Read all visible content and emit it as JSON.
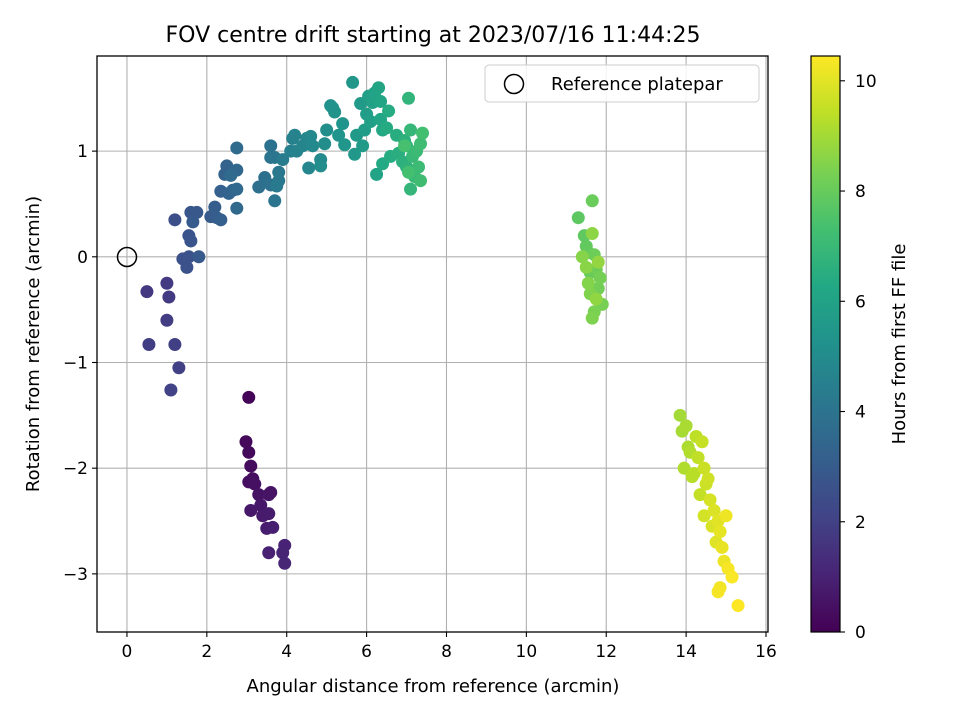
{
  "chart_data": {
    "type": "scatter",
    "title": "FOV centre drift starting at 2023/07/16 11:44:25",
    "xlabel": "Angular distance from reference (arcmin)",
    "ylabel": "Rotation from reference (arcmin)",
    "xlim": [
      -0.75,
      16.05
    ],
    "ylim": [
      -3.55,
      1.9
    ],
    "xticks": [
      0,
      2,
      4,
      6,
      8,
      10,
      12,
      14,
      16
    ],
    "yticks": [
      -3,
      -2,
      -1,
      0,
      1
    ],
    "xtick_labels": [
      "0",
      "2",
      "4",
      "6",
      "8",
      "10",
      "12",
      "14",
      "16"
    ],
    "ytick_labels": [
      "−3",
      "−2",
      "−1",
      "0",
      "1"
    ],
    "grid": true,
    "legend": {
      "position": "top-right",
      "entries": [
        "Reference platepar"
      ]
    },
    "reference_point": {
      "x": 0,
      "y": 0
    },
    "colorbar": {
      "label": "Hours from first FF file",
      "colormap": "viridis",
      "range": [
        0,
        10.45
      ],
      "ticks": [
        0,
        2,
        4,
        6,
        8,
        10
      ],
      "tick_labels": [
        "0",
        "2",
        "4",
        "6",
        "8",
        "10"
      ]
    },
    "points": [
      [
        3.05,
        -1.33,
        0.1
      ],
      [
        2.98,
        -1.75,
        0.2
      ],
      [
        3.05,
        -1.85,
        0.25
      ],
      [
        3.1,
        -1.98,
        0.3
      ],
      [
        3.15,
        -2.1,
        0.35
      ],
      [
        3.05,
        -2.13,
        0.4
      ],
      [
        3.2,
        -2.15,
        0.45
      ],
      [
        3.3,
        -2.25,
        0.5
      ],
      [
        3.55,
        -2.25,
        0.6
      ],
      [
        3.6,
        -2.23,
        0.55
      ],
      [
        3.35,
        -2.35,
        0.65
      ],
      [
        3.1,
        -2.4,
        0.7
      ],
      [
        3.4,
        -2.45,
        0.75
      ],
      [
        3.55,
        -2.43,
        0.8
      ],
      [
        3.5,
        -2.57,
        0.85
      ],
      [
        3.65,
        -2.56,
        0.9
      ],
      [
        3.55,
        -2.8,
        0.95
      ],
      [
        3.95,
        -2.73,
        1.0
      ],
      [
        3.9,
        -2.8,
        1.05
      ],
      [
        3.95,
        -2.9,
        1.1
      ],
      [
        0.5,
        -0.33,
        1.7
      ],
      [
        1.0,
        -0.25,
        1.75
      ],
      [
        1.05,
        -0.38,
        1.8
      ],
      [
        1.0,
        -0.6,
        1.85
      ],
      [
        0.55,
        -0.83,
        1.9
      ],
      [
        1.2,
        -0.83,
        1.95
      ],
      [
        1.3,
        -1.05,
        2.0
      ],
      [
        1.1,
        -1.26,
        2.05
      ],
      [
        1.2,
        0.35,
        2.5
      ],
      [
        1.4,
        -0.02,
        2.55
      ],
      [
        1.5,
        -0.1,
        2.6
      ],
      [
        1.55,
        0.0,
        2.65
      ],
      [
        1.55,
        0.2,
        2.7
      ],
      [
        1.6,
        0.15,
        2.75
      ],
      [
        1.6,
        0.42,
        2.8
      ],
      [
        1.75,
        0.42,
        2.85
      ],
      [
        1.8,
        0.0,
        2.9
      ],
      [
        1.65,
        0.33,
        2.95
      ],
      [
        2.1,
        0.38,
        3.0
      ],
      [
        2.25,
        0.37,
        3.05
      ],
      [
        2.2,
        0.47,
        3.1
      ],
      [
        2.35,
        0.35,
        3.15
      ],
      [
        2.35,
        0.62,
        3.2
      ],
      [
        2.45,
        0.78,
        3.25
      ],
      [
        2.5,
        0.86,
        3.3
      ],
      [
        2.55,
        0.6,
        3.35
      ],
      [
        2.65,
        0.63,
        3.4
      ],
      [
        2.75,
        0.82,
        3.45
      ],
      [
        2.75,
        0.64,
        3.5
      ],
      [
        2.75,
        0.46,
        3.55
      ],
      [
        2.75,
        1.03,
        3.6
      ],
      [
        2.6,
        0.77,
        3.65
      ],
      [
        3.3,
        0.66,
        3.8
      ],
      [
        3.45,
        0.75,
        3.85
      ],
      [
        3.6,
        0.68,
        3.9
      ],
      [
        3.6,
        1.05,
        3.95
      ],
      [
        3.6,
        0.94,
        4.0
      ],
      [
        3.7,
        0.53,
        4.05
      ],
      [
        3.7,
        0.94,
        4.1
      ],
      [
        3.8,
        0.8,
        4.15
      ],
      [
        3.8,
        0.72,
        4.2
      ],
      [
        3.75,
        0.67,
        4.25
      ],
      [
        3.9,
        0.92,
        4.3
      ],
      [
        4.1,
        1.0,
        4.5
      ],
      [
        4.15,
        1.12,
        4.55
      ],
      [
        4.2,
        1.15,
        4.6
      ],
      [
        4.25,
        1.0,
        4.65
      ],
      [
        4.4,
        1.05,
        4.7
      ],
      [
        4.5,
        1.12,
        4.75
      ],
      [
        4.55,
        0.84,
        4.8
      ],
      [
        4.6,
        1.14,
        4.85
      ],
      [
        4.65,
        1.05,
        4.9
      ],
      [
        4.85,
        0.92,
        4.95
      ],
      [
        4.85,
        0.86,
        5.0
      ],
      [
        4.95,
        1.07,
        5.05
      ],
      [
        5.0,
        1.2,
        5.1
      ],
      [
        5.1,
        1.43,
        5.2
      ],
      [
        5.15,
        1.41,
        5.25
      ],
      [
        5.2,
        1.37,
        5.3
      ],
      [
        5.3,
        1.15,
        5.35
      ],
      [
        5.4,
        1.26,
        5.4
      ],
      [
        5.45,
        1.06,
        5.45
      ],
      [
        5.65,
        1.65,
        5.5
      ],
      [
        5.7,
        0.97,
        5.55
      ],
      [
        5.75,
        1.15,
        5.6
      ],
      [
        5.85,
        1.45,
        5.65
      ],
      [
        5.9,
        1.05,
        5.7
      ],
      [
        5.95,
        1.2,
        5.75
      ],
      [
        6.0,
        1.35,
        5.8
      ],
      [
        6.05,
        1.52,
        5.85
      ],
      [
        6.1,
        1.28,
        5.9
      ],
      [
        6.15,
        1.46,
        5.95
      ],
      [
        6.2,
        1.55,
        6.0
      ],
      [
        6.25,
        0.78,
        6.05
      ],
      [
        6.3,
        1.6,
        6.1
      ],
      [
        6.35,
        1.47,
        6.15
      ],
      [
        6.35,
        1.3,
        6.2
      ],
      [
        6.4,
        1.2,
        6.25
      ],
      [
        6.4,
        0.88,
        6.3
      ],
      [
        6.5,
        1.22,
        6.35
      ],
      [
        6.55,
        1.38,
        6.4
      ],
      [
        6.6,
        0.95,
        6.45
      ],
      [
        6.75,
        1.15,
        6.5
      ],
      [
        6.8,
        0.98,
        6.55
      ],
      [
        6.9,
        0.9,
        6.6
      ],
      [
        6.95,
        1.1,
        6.65
      ],
      [
        7.0,
        0.85,
        6.7
      ],
      [
        7.0,
        1.05,
        6.75
      ],
      [
        7.05,
        1.5,
        6.8
      ],
      [
        7.1,
        0.64,
        6.85
      ],
      [
        7.1,
        1.2,
        6.9
      ],
      [
        7.15,
        0.95,
        6.95
      ],
      [
        7.2,
        0.76,
        7.0
      ],
      [
        7.25,
        1.0,
        7.05
      ],
      [
        7.3,
        0.85,
        7.1
      ],
      [
        7.35,
        1.07,
        7.15
      ],
      [
        7.35,
        0.72,
        7.2
      ],
      [
        7.4,
        1.17,
        7.25
      ],
      [
        7.05,
        0.8,
        7.3
      ],
      [
        6.95,
        1.05,
        7.35
      ],
      [
        11.3,
        0.37,
        7.8
      ],
      [
        11.45,
        0.2,
        7.85
      ],
      [
        11.5,
        0.1,
        7.9
      ],
      [
        11.55,
        0.04,
        7.95
      ],
      [
        11.6,
        -0.15,
        8.0
      ],
      [
        11.65,
        0.53,
        8.05
      ],
      [
        11.7,
        0.02,
        8.1
      ],
      [
        11.75,
        -0.12,
        8.15
      ],
      [
        11.8,
        -0.3,
        8.2
      ],
      [
        11.85,
        -0.2,
        8.25
      ],
      [
        11.9,
        -0.45,
        8.3
      ],
      [
        11.7,
        -0.52,
        8.35
      ],
      [
        11.65,
        -0.58,
        8.4
      ],
      [
        11.6,
        -0.35,
        8.45
      ],
      [
        11.55,
        -0.25,
        8.5
      ],
      [
        11.4,
        0.0,
        8.55
      ],
      [
        11.5,
        -0.1,
        8.6
      ],
      [
        11.65,
        0.22,
        8.65
      ],
      [
        11.75,
        -0.4,
        8.7
      ],
      [
        11.8,
        -0.05,
        8.75
      ],
      [
        13.85,
        -1.5,
        9.0
      ],
      [
        13.9,
        -1.65,
        9.05
      ],
      [
        14.0,
        -1.6,
        9.1
      ],
      [
        14.05,
        -1.8,
        9.15
      ],
      [
        13.95,
        -2.0,
        9.2
      ],
      [
        14.1,
        -1.85,
        9.25
      ],
      [
        14.15,
        -2.08,
        9.3
      ],
      [
        14.2,
        -2.05,
        9.35
      ],
      [
        14.25,
        -1.7,
        9.4
      ],
      [
        14.3,
        -1.9,
        9.45
      ],
      [
        14.35,
        -2.25,
        9.5
      ],
      [
        14.4,
        -1.75,
        9.55
      ],
      [
        14.45,
        -2.0,
        9.6
      ],
      [
        14.5,
        -2.15,
        9.65
      ],
      [
        14.55,
        -2.1,
        9.7
      ],
      [
        14.45,
        -2.45,
        9.75
      ],
      [
        14.6,
        -2.3,
        9.8
      ],
      [
        14.65,
        -2.55,
        9.85
      ],
      [
        14.7,
        -2.4,
        9.9
      ],
      [
        14.75,
        -2.7,
        9.95
      ],
      [
        14.8,
        -2.5,
        10.0
      ],
      [
        14.85,
        -2.6,
        10.05
      ],
      [
        14.9,
        -2.75,
        10.1
      ],
      [
        14.95,
        -2.88,
        10.15
      ],
      [
        15.0,
        -2.45,
        10.2
      ],
      [
        14.85,
        -3.13,
        10.25
      ],
      [
        14.8,
        -3.17,
        10.3
      ],
      [
        15.05,
        -2.95,
        10.35
      ],
      [
        15.15,
        -3.03,
        10.4
      ],
      [
        15.3,
        -3.3,
        10.45
      ]
    ]
  }
}
